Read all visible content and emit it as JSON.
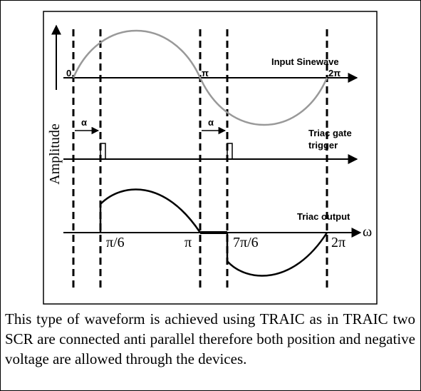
{
  "diagram": {
    "sine": {
      "origin": "0",
      "pi": "π",
      "two_pi": "2π",
      "label": "Input Sinewave"
    },
    "gate": {
      "alpha_1": "α",
      "alpha_2": "α",
      "label_line1": "Triac gate",
      "label_line2": "trigger"
    },
    "y_axis_label": "Amplitude",
    "output": {
      "label": "Triac output",
      "x_label": "ω",
      "ticks": [
        "π/6",
        "π",
        "7π/6",
        "2π"
      ]
    }
  },
  "caption": "This type of waveform is achieved using TRAIC as in TRAIC two SCR are connected anti parallel therefore both position and negative voltage are allowed through the devices."
}
